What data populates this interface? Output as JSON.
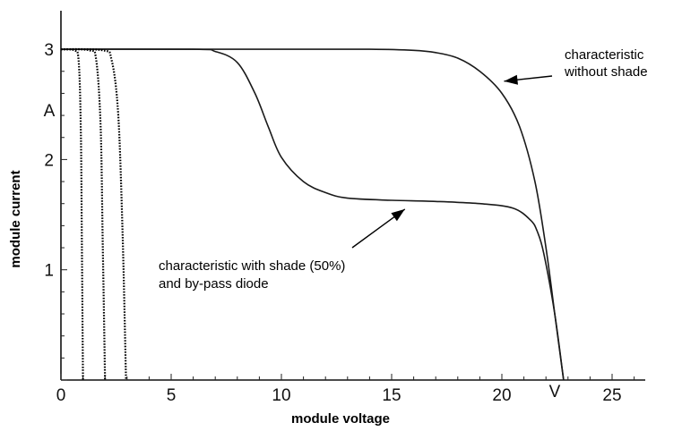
{
  "chart_data": {
    "type": "line",
    "xlabel": "module voltage",
    "ylabel": "module current",
    "x_unit": "V",
    "y_unit": "A",
    "xlim": [
      0,
      26.5
    ],
    "ylim": [
      0,
      3.1
    ],
    "x_ticks": [
      0,
      5,
      10,
      15,
      20,
      25
    ],
    "y_ticks": [
      1,
      2,
      3
    ],
    "grid": false,
    "series": [
      {
        "name": "characteristic without shade",
        "points": [
          [
            0,
            3.0
          ],
          [
            6,
            3.0
          ],
          [
            10,
            3.0
          ],
          [
            14,
            3.0
          ],
          [
            16,
            2.99
          ],
          [
            17,
            2.97
          ],
          [
            18,
            2.92
          ],
          [
            19,
            2.8
          ],
          [
            20,
            2.6
          ],
          [
            20.8,
            2.3
          ],
          [
            21.5,
            1.8
          ],
          [
            22.0,
            1.2
          ],
          [
            22.4,
            0.6
          ],
          [
            22.7,
            0.15
          ],
          [
            22.8,
            0.0
          ]
        ]
      },
      {
        "name": "characteristic with shade (50%) and by-pass diode",
        "points": [
          [
            0,
            3.0
          ],
          [
            6,
            3.0
          ],
          [
            7,
            2.98
          ],
          [
            8,
            2.88
          ],
          [
            8.8,
            2.6
          ],
          [
            9.4,
            2.3
          ],
          [
            10,
            2.02
          ],
          [
            11,
            1.8
          ],
          [
            12,
            1.7
          ],
          [
            13,
            1.65
          ],
          [
            15,
            1.63
          ],
          [
            17,
            1.62
          ],
          [
            19,
            1.6
          ],
          [
            20.5,
            1.56
          ],
          [
            21.3,
            1.45
          ],
          [
            21.6,
            1.35
          ],
          [
            21.9,
            1.15
          ],
          [
            22.4,
            0.6
          ],
          [
            22.8,
            0.0
          ]
        ]
      },
      {
        "name": "",
        "style": "dotted",
        "points": [
          [
            0,
            3.0
          ],
          [
            0.6,
            2.99
          ],
          [
            0.8,
            2.9
          ],
          [
            0.9,
            2.3
          ],
          [
            0.95,
            1.2
          ],
          [
            1.0,
            0.0
          ]
        ]
      },
      {
        "name": "",
        "style": "dotted",
        "points": [
          [
            0,
            3.0
          ],
          [
            1.3,
            2.99
          ],
          [
            1.6,
            2.9
          ],
          [
            1.8,
            2.3
          ],
          [
            1.9,
            1.2
          ],
          [
            2.0,
            0.0
          ]
        ]
      },
      {
        "name": "",
        "style": "dotted",
        "points": [
          [
            0,
            3.0
          ],
          [
            1.9,
            2.99
          ],
          [
            2.3,
            2.9
          ],
          [
            2.6,
            2.4
          ],
          [
            2.8,
            1.3
          ],
          [
            2.95,
            0.0
          ]
        ]
      }
    ],
    "annotations": [
      {
        "text_lines": [
          "characteristic",
          "without shade"
        ],
        "arrow_to": [
          20.1,
          2.71
        ]
      },
      {
        "text_lines": [
          "characteristic with shade (50%)",
          "and by-pass diode"
        ],
        "arrow_to": [
          15.6,
          1.55
        ]
      }
    ]
  }
}
